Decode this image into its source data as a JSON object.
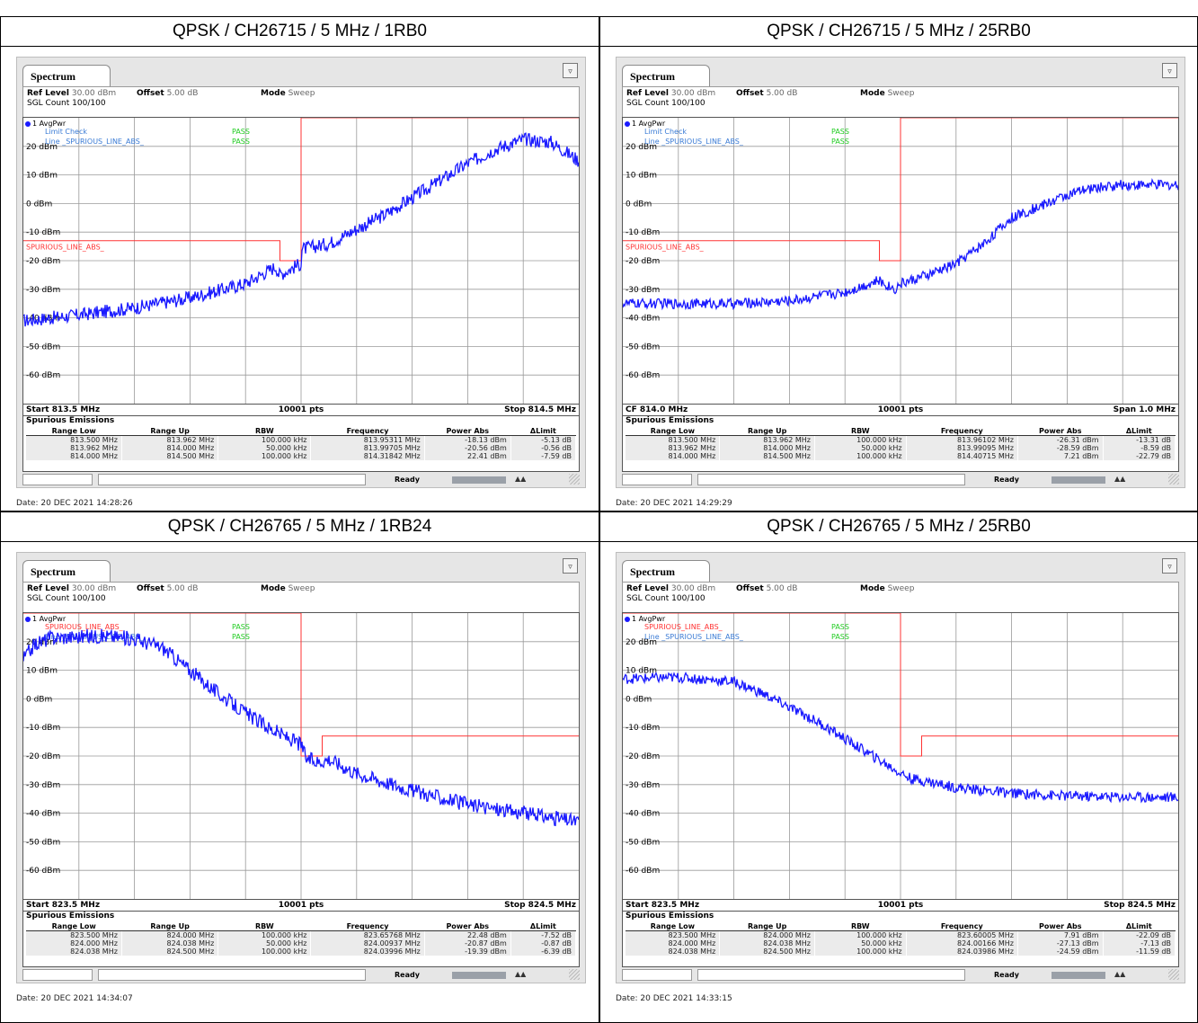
{
  "panels": [
    {
      "title": "QPSK / CH26715 / 5 MHz / 1RB0",
      "tab": "Spectrum",
      "ref_level_label": "Ref Level",
      "ref_level": "30.00 dBm",
      "offset_label": "Offset",
      "offset": "5.00 dB",
      "mode_label": "Mode",
      "mode": "Sweep",
      "sgl_count": "SGL Count 100/100",
      "trace_label": "1 AvgPwr",
      "limit_check_label": "Limit Check",
      "limit_check_value": "PASS",
      "line_label": "Line _SPURIOUS_LINE_ABS_",
      "line_value": "PASS",
      "line_name": "SPURIOUS_LINE_ABS_",
      "footer_left": "Start 813.5 MHz",
      "footer_center": "10001 pts",
      "footer_right": "Stop 814.5 MHz",
      "spur_title": "Spurious Emissions",
      "columns": [
        "Range Low",
        "Range Up",
        "RBW",
        "Frequency",
        "Power Abs",
        "ΔLimit"
      ],
      "rows": [
        [
          "813.500 MHz",
          "813.962 MHz",
          "100.000 kHz",
          "813.95311 MHz",
          "-18.13 dBm",
          "-5.13 dB"
        ],
        [
          "813.962 MHz",
          "814.000 MHz",
          "50.000 kHz",
          "813.99705 MHz",
          "-20.56 dBm",
          "-0.56 dB"
        ],
        [
          "814.000 MHz",
          "814.500 MHz",
          "100.000 kHz",
          "814.31842 MHz",
          "22.41 dBm",
          "-7.59 dB"
        ]
      ],
      "status_ready": "Ready",
      "date": "Date: 20 DEC 2021 14:28:26",
      "chart_data": {
        "type": "line",
        "x_range_mhz": [
          813.5,
          814.5
        ],
        "ylim": [
          -70,
          30
        ],
        "y_ticks": [
          20,
          10,
          0,
          -10,
          -20,
          -30,
          -40,
          -50,
          -60
        ],
        "y_tick_labels": [
          "20 dBm",
          "10 dBm",
          "0 dBm",
          "-10 dBm",
          "-20 dBm",
          "-30 dBm",
          "-40 dBm",
          "-50 dBm",
          "-60 dBm"
        ],
        "limit_line": [
          [
            813.5,
            -13
          ],
          [
            813.962,
            -13
          ],
          [
            813.962,
            -20
          ],
          [
            814.0,
            -20
          ],
          [
            814.0,
            30
          ],
          [
            814.5,
            30
          ]
        ],
        "trace_points": [
          [
            813.5,
            -41
          ],
          [
            813.6,
            -39
          ],
          [
            813.7,
            -36.5
          ],
          [
            813.8,
            -33
          ],
          [
            813.9,
            -28
          ],
          [
            813.955,
            -22
          ],
          [
            813.96,
            -25
          ],
          [
            814.0,
            -21
          ],
          [
            814.0,
            -16
          ],
          [
            814.05,
            -14
          ],
          [
            814.1,
            -9
          ],
          [
            814.15,
            -4
          ],
          [
            814.2,
            2
          ],
          [
            814.3,
            14
          ],
          [
            814.35,
            19
          ],
          [
            814.4,
            22.5
          ],
          [
            814.45,
            21.5
          ],
          [
            814.5,
            15
          ]
        ],
        "noise_dB": 1.2,
        "grid": true
      }
    },
    {
      "title": "QPSK / CH26715 / 5 MHz / 25RB0",
      "tab": "Spectrum",
      "ref_level_label": "Ref Level",
      "ref_level": "30.00 dBm",
      "offset_label": "Offset",
      "offset": "5.00 dB",
      "mode_label": "Mode",
      "mode": "Sweep",
      "sgl_count": "SGL Count 100/100",
      "trace_label": "1 AvgPwr",
      "limit_check_label": "Limit Check",
      "limit_check_value": "PASS",
      "line_label": "Line _SPURIOUS_LINE_ABS_",
      "line_value": "PASS",
      "line_name": "SPURIOUS_LINE_ABS_",
      "footer_left": "CF 814.0 MHz",
      "footer_center": "10001 pts",
      "footer_right": "Span 1.0 MHz",
      "spur_title": "Spurious Emissions",
      "columns": [
        "Range Low",
        "Range Up",
        "RBW",
        "Frequency",
        "Power Abs",
        "ΔLimit"
      ],
      "rows": [
        [
          "813.500 MHz",
          "813.962 MHz",
          "100.000 kHz",
          "813.96102 MHz",
          "-26.31 dBm",
          "-13.31 dB"
        ],
        [
          "813.962 MHz",
          "814.000 MHz",
          "50.000 kHz",
          "813.99095 MHz",
          "-28.59 dBm",
          "-8.59 dB"
        ],
        [
          "814.000 MHz",
          "814.500 MHz",
          "100.000 kHz",
          "814.40715 MHz",
          "7.21 dBm",
          "-22.79 dB"
        ]
      ],
      "status_ready": "Ready",
      "date": "Date: 20 DEC 2021 14:29:29",
      "chart_data": {
        "type": "line",
        "x_range_mhz": [
          813.5,
          814.5
        ],
        "ylim": [
          -70,
          30
        ],
        "y_ticks": [
          20,
          10,
          0,
          -10,
          -20,
          -30,
          -40,
          -50,
          -60
        ],
        "y_tick_labels": [
          "20 dBm",
          "10 dBm",
          "0 dBm",
          "-10 dBm",
          "-20 dBm",
          "-30 dBm",
          "-40 dBm",
          "-50 dBm",
          "-60 dBm"
        ],
        "limit_line": [
          [
            813.5,
            -13
          ],
          [
            813.962,
            -13
          ],
          [
            813.962,
            -20
          ],
          [
            814.0,
            -20
          ],
          [
            814.0,
            30
          ],
          [
            814.5,
            30
          ]
        ],
        "trace_points": [
          [
            813.5,
            -35
          ],
          [
            813.7,
            -35
          ],
          [
            813.8,
            -34
          ],
          [
            813.9,
            -31
          ],
          [
            813.96,
            -27
          ],
          [
            813.99,
            -30
          ],
          [
            814.0,
            -28
          ],
          [
            814.05,
            -25
          ],
          [
            814.1,
            -21
          ],
          [
            814.15,
            -14
          ],
          [
            814.2,
            -5
          ],
          [
            814.3,
            3
          ],
          [
            814.35,
            5.5
          ],
          [
            814.4,
            6.5
          ],
          [
            814.5,
            6.5
          ]
        ],
        "noise_dB": 0.9,
        "grid": true
      }
    },
    {
      "title": "QPSK / CH26765 / 5 MHz / 1RB24",
      "tab": "Spectrum",
      "ref_level_label": "Ref Level",
      "ref_level": "30.00 dBm",
      "offset_label": "Offset",
      "offset": "5.00 dB",
      "mode_label": "Mode",
      "mode": "Sweep",
      "sgl_count": "SGL Count 100/100",
      "trace_label": "1 AvgPwr",
      "limit_check_label": "SPURIOUS_LINE_ABS_",
      "limit_check_value": "PASS",
      "line_label": "Line _SPURIOUS_LINE_ABS_",
      "line_value": "PASS",
      "line_name": "",
      "footer_left": "Start 823.5 MHz",
      "footer_center": "10001 pts",
      "footer_right": "Stop 824.5 MHz",
      "spur_title": "Spurious Emissions",
      "columns": [
        "Range Low",
        "Range Up",
        "RBW",
        "Frequency",
        "Power Abs",
        "ΔLimit"
      ],
      "rows": [
        [
          "823.500 MHz",
          "824.000 MHz",
          "100.000 kHz",
          "823.65768 MHz",
          "22.48 dBm",
          "-7.52 dB"
        ],
        [
          "824.000 MHz",
          "824.038 MHz",
          "50.000 kHz",
          "824.00937 MHz",
          "-20.87 dBm",
          "-0.87 dB"
        ],
        [
          "824.038 MHz",
          "824.500 MHz",
          "100.000 kHz",
          "824.03996 MHz",
          "-19.39 dBm",
          "-6.39 dB"
        ]
      ],
      "status_ready": "Ready",
      "date": "Date: 20 DEC 2021 14:34:07",
      "chart_data": {
        "type": "line",
        "x_range_mhz": [
          823.5,
          824.5
        ],
        "ylim": [
          -70,
          30
        ],
        "y_ticks": [
          20,
          10,
          0,
          -10,
          -20,
          -30,
          -40,
          -50,
          -60
        ],
        "y_tick_labels": [
          "20 dBm",
          "10 dBm",
          "0 dBm",
          "-10 dBm",
          "-20 dBm",
          "-30 dBm",
          "-40 dBm",
          "-50 dBm",
          "-60 dBm"
        ],
        "limit_line": [
          [
            823.5,
            30
          ],
          [
            824.0,
            30
          ],
          [
            824.0,
            -20
          ],
          [
            824.038,
            -20
          ],
          [
            824.038,
            -13
          ],
          [
            824.5,
            -13
          ]
        ],
        "trace_points": [
          [
            823.5,
            14
          ],
          [
            823.52,
            19
          ],
          [
            823.55,
            21.5
          ],
          [
            823.65,
            22
          ],
          [
            823.7,
            21
          ],
          [
            823.75,
            18
          ],
          [
            823.8,
            10
          ],
          [
            823.85,
            2
          ],
          [
            823.9,
            -5
          ],
          [
            823.95,
            -11
          ],
          [
            824.0,
            -16
          ],
          [
            824.01,
            -21
          ],
          [
            824.03,
            -22
          ],
          [
            824.05,
            -21
          ],
          [
            824.1,
            -26
          ],
          [
            824.2,
            -32
          ],
          [
            824.3,
            -37
          ],
          [
            824.4,
            -40
          ],
          [
            824.5,
            -43
          ]
        ],
        "noise_dB": 1.3,
        "grid": true
      }
    },
    {
      "title": "QPSK / CH26765 / 5 MHz / 25RB0",
      "tab": "Spectrum",
      "ref_level_label": "Ref Level",
      "ref_level": "30.00 dBm",
      "offset_label": "Offset",
      "offset": "5.00 dB",
      "mode_label": "Mode",
      "mode": "Sweep",
      "sgl_count": "SGL Count 100/100",
      "trace_label": "1 AvgPwr",
      "limit_check_label": "SPURIOUS_LINE_ABS_",
      "limit_check_value": "PASS",
      "line_label": "Line _SPURIOUS_LINE_ABS_",
      "line_value": "PASS",
      "line_name": "",
      "footer_left": "Start 823.5 MHz",
      "footer_center": "10001 pts",
      "footer_right": "Stop 824.5 MHz",
      "spur_title": "Spurious Emissions",
      "columns": [
        "Range Low",
        "Range Up",
        "RBW",
        "Frequency",
        "Power Abs",
        "ΔLimit"
      ],
      "rows": [
        [
          "823.500 MHz",
          "824.000 MHz",
          "100.000 kHz",
          "823.60005 MHz",
          "7.91 dBm",
          "-22.09 dB"
        ],
        [
          "824.000 MHz",
          "824.038 MHz",
          "50.000 kHz",
          "824.00166 MHz",
          "-27.13 dBm",
          "-7.13 dB"
        ],
        [
          "824.038 MHz",
          "824.500 MHz",
          "100.000 kHz",
          "824.03986 MHz",
          "-24.59 dBm",
          "-11.59 dB"
        ]
      ],
      "status_ready": "Ready",
      "date": "Date: 20 DEC 2021 14:33:15",
      "chart_data": {
        "type": "line",
        "x_range_mhz": [
          823.5,
          824.5
        ],
        "ylim": [
          -70,
          30
        ],
        "y_ticks": [
          20,
          10,
          0,
          -10,
          -20,
          -30,
          -40,
          -50,
          -60
        ],
        "y_tick_labels": [
          "20 dBm",
          "10 dBm",
          "0 dBm",
          "-10 dBm",
          "-20 dBm",
          "-30 dBm",
          "-40 dBm",
          "-50 dBm",
          "-60 dBm"
        ],
        "limit_line": [
          [
            823.5,
            30
          ],
          [
            824.0,
            30
          ],
          [
            824.0,
            -20
          ],
          [
            824.038,
            -20
          ],
          [
            824.038,
            -13
          ],
          [
            824.5,
            -13
          ]
        ],
        "trace_points": [
          [
            823.5,
            7
          ],
          [
            823.6,
            7.5
          ],
          [
            823.7,
            6
          ],
          [
            823.75,
            2
          ],
          [
            823.8,
            -3
          ],
          [
            823.85,
            -8
          ],
          [
            823.9,
            -14
          ],
          [
            823.95,
            -20
          ],
          [
            824.0,
            -26
          ],
          [
            824.02,
            -28
          ],
          [
            824.05,
            -29
          ],
          [
            824.1,
            -31
          ],
          [
            824.2,
            -33
          ],
          [
            824.3,
            -34
          ],
          [
            824.5,
            -34.5
          ]
        ],
        "noise_dB": 0.9,
        "grid": true
      }
    }
  ],
  "colors": {
    "trace": "#1a1aff",
    "limit": "#ff3333",
    "pass": "#22cc22",
    "grid": "#9a9a9a",
    "label_blue": "#3a7bd5"
  }
}
